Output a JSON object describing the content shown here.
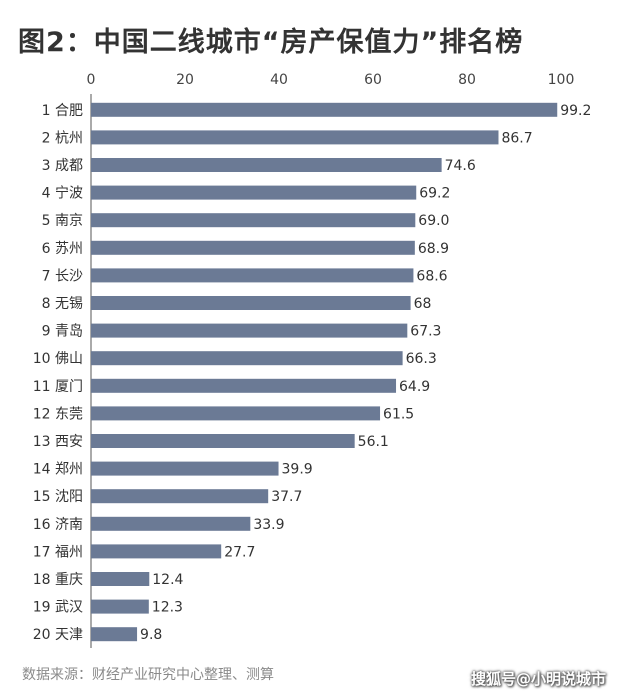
{
  "title": "图2：中国二线城市“房产保值力”排名榜",
  "source": "数据来源：财经产业研究中心整理、测算",
  "watermark": "搜狐号@小明说城市",
  "colors": {
    "bar": "#6b7a95",
    "text": "#333333",
    "axis": "#555555"
  },
  "chart_data": {
    "type": "bar",
    "orientation": "horizontal",
    "title": "图2：中国二线城市“房产保值力”排名榜",
    "xlim": [
      0,
      100
    ],
    "xticks": [
      "0",
      "20",
      "40",
      "60",
      "80",
      "100"
    ],
    "xtick_values": [
      0,
      20,
      40,
      60,
      80,
      100
    ],
    "categories": [
      "1 合肥",
      "2 杭州",
      "3 成都",
      "4 宁波",
      "5 南京",
      "6 苏州",
      "7 长沙",
      "8 无锡",
      "9 青岛",
      "10 佛山",
      "11 厦门",
      "12 东莞",
      "13 西安",
      "14 郑州",
      "15 沈阳",
      "16 济南",
      "17 福州",
      "18 重庆",
      "19 武汉",
      "20 天津"
    ],
    "values": [
      99.2,
      86.7,
      74.6,
      69.2,
      69.0,
      68.9,
      68.6,
      68,
      67.3,
      66.3,
      64.9,
      61.5,
      56.1,
      39.9,
      37.7,
      33.9,
      27.7,
      12.4,
      12.3,
      9.8
    ],
    "value_labels": [
      "99.2",
      "86.7",
      "74.6",
      "69.2",
      "69.0",
      "68.9",
      "68.6",
      "68",
      "67.3",
      "66.3",
      "64.9",
      "61.5",
      "56.1",
      "39.9",
      "37.7",
      "33.9",
      "27.7",
      "12.4",
      "12.3",
      "9.8"
    ],
    "grid": false,
    "legend": "none"
  }
}
